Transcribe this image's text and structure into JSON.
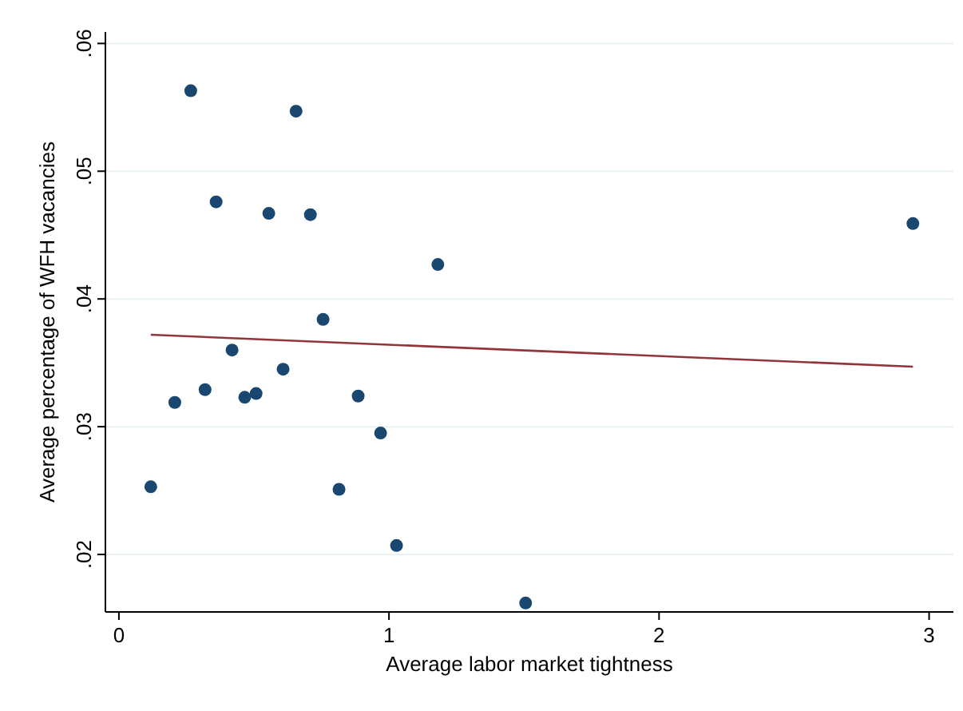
{
  "chart_data": {
    "type": "scatter",
    "xlabel": "Average labor market tightness",
    "ylabel": "Average percentage of WFH vacancies",
    "xlim": [
      -0.05,
      3.09
    ],
    "ylim": [
      0.0155,
      0.0609
    ],
    "xticks": [
      0,
      1,
      2,
      3
    ],
    "yticks": [
      {
        "value": 0.02,
        "label": ".02"
      },
      {
        "value": 0.03,
        "label": ".03"
      },
      {
        "value": 0.04,
        "label": ".04"
      },
      {
        "value": 0.05,
        "label": ".05"
      },
      {
        "value": 0.06,
        "label": ".06"
      }
    ],
    "grid": "y",
    "series": [
      {
        "marker": "circle",
        "color": "#1a476f",
        "x": [
          0.118,
          0.207,
          0.266,
          0.319,
          0.36,
          0.419,
          0.466,
          0.508,
          0.555,
          0.608,
          0.656,
          0.709,
          0.756,
          0.815,
          0.886,
          0.969,
          1.028,
          1.181,
          1.506,
          2.94
        ],
        "values": [
          0.0253,
          0.0319,
          0.0563,
          0.0329,
          0.0476,
          0.036,
          0.0323,
          0.0326,
          0.0467,
          0.0345,
          0.0547,
          0.0466,
          0.0384,
          0.0251,
          0.0324,
          0.0295,
          0.0207,
          0.0427,
          0.0162,
          0.0459
        ]
      },
      {
        "type": "line",
        "marker": "none",
        "color": "#90353b",
        "x": [
          0.118,
          2.94
        ],
        "values": [
          0.0372,
          0.0347
        ]
      }
    ]
  }
}
